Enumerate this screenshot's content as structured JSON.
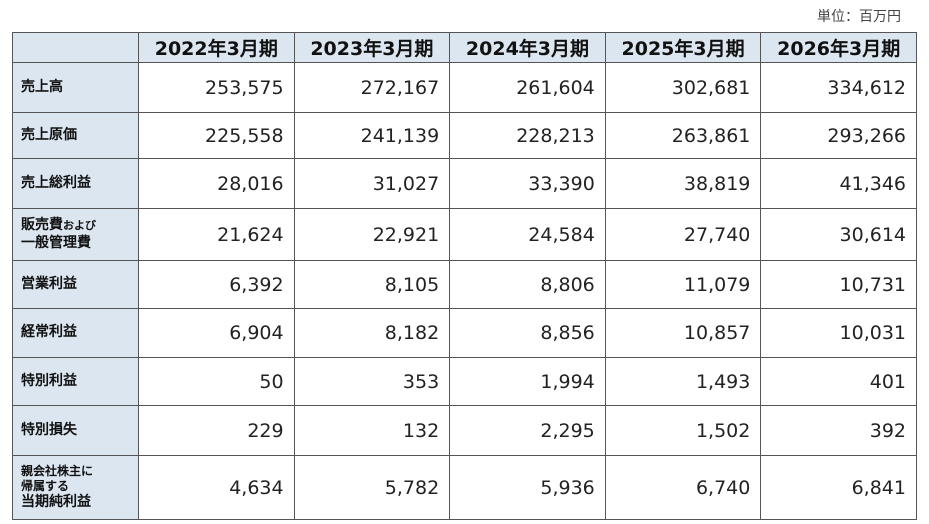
{
  "unit": "単位：百万円",
  "table": {
    "header": [
      "2022年3月期",
      "2023年3月期",
      "2024年3月期",
      "2025年3月期",
      "2026年3月期"
    ],
    "rows": [
      {
        "label": [
          [
            "売上高"
          ]
        ],
        "values": [
          "253,575",
          "272,167",
          "261,604",
          "302,681",
          "334,612"
        ]
      },
      {
        "label": [
          [
            "売上原価"
          ]
        ],
        "values": [
          "225,558",
          "241,139",
          "228,213",
          "263,861",
          "293,266"
        ]
      },
      {
        "label": [
          [
            "売上総利益"
          ]
        ],
        "values": [
          "28,016",
          "31,027",
          "33,390",
          "38,819",
          "41,346"
        ]
      },
      {
        "label": [
          [
            "販売費",
            "および"
          ],
          [
            "一般管理費"
          ]
        ],
        "values": [
          "21,624",
          "22,921",
          "24,584",
          "27,740",
          "30,614"
        ]
      },
      {
        "label": [
          [
            "営業利益"
          ]
        ],
        "values": [
          "6,392",
          "8,105",
          "8,806",
          "11,079",
          "10,731"
        ]
      },
      {
        "label": [
          [
            "経常利益"
          ]
        ],
        "values": [
          "6,904",
          "8,182",
          "8,856",
          "10,857",
          "10,031"
        ]
      },
      {
        "label": [
          [
            "特別利益"
          ]
        ],
        "values": [
          "50",
          "353",
          "1,994",
          "1,493",
          "401"
        ]
      },
      {
        "label": [
          [
            "特別損失"
          ]
        ],
        "values": [
          "229",
          "132",
          "2,295",
          "1,502",
          "392"
        ]
      },
      {
        "label": [
          [
            "親会社株主に"
          ],
          [
            "帰属する"
          ],
          [
            "当期純利益"
          ]
        ],
        "values": [
          "4,634",
          "5,782",
          "5,936",
          "6,740",
          "6,841"
        ]
      }
    ]
  }
}
